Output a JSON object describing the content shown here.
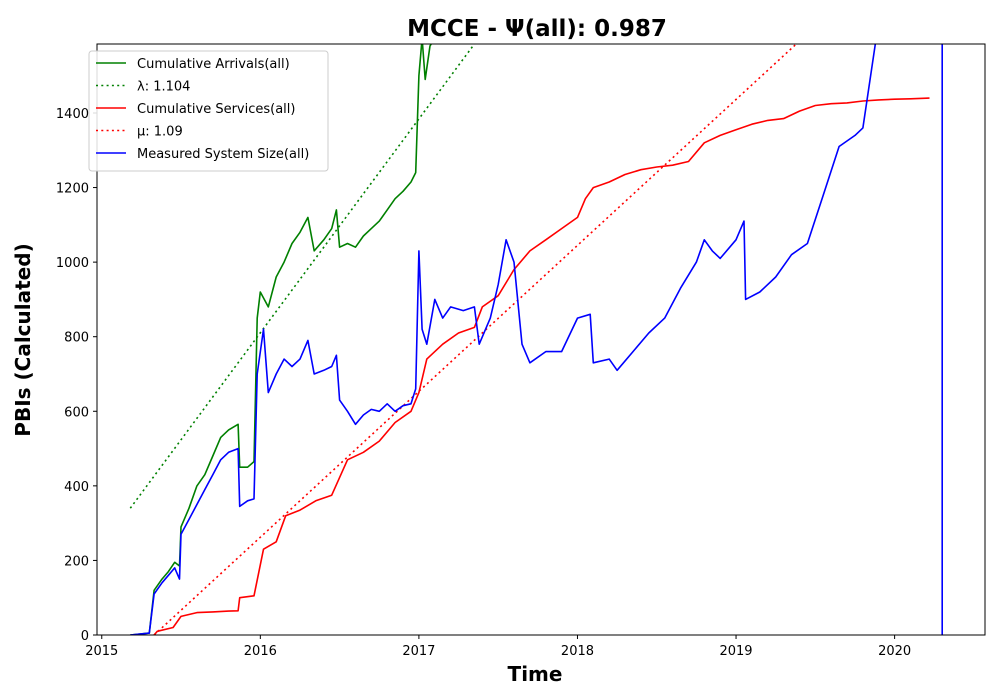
{
  "chart_data": {
    "type": "line",
    "title": "MCCE -  Ψ(all): 0.987",
    "xlabel": "Time",
    "ylabel": "PBIs (Calculated)",
    "xlim": [
      2014.97,
      2020.57
    ],
    "ylim": [
      0,
      1585
    ],
    "x_ticks": [
      2015,
      2016,
      2017,
      2018,
      2019,
      2020
    ],
    "x_tick_labels": [
      "2015",
      "2016",
      "2017",
      "2018",
      "2019",
      "2020"
    ],
    "y_ticks": [
      0,
      200,
      400,
      600,
      800,
      1000,
      1200,
      1400
    ],
    "y_tick_labels": [
      "0",
      "200",
      "400",
      "600",
      "800",
      "1000",
      "1200",
      "1400"
    ],
    "grid": false,
    "legend_position": "upper-left",
    "legend": [
      {
        "label": "Cumulative Arrivals(all)",
        "color": "#008000",
        "style": "solid"
      },
      {
        "label": "λ: 1.104",
        "color": "#008000",
        "style": "dotted"
      },
      {
        "label": "Cumulative Services(all)",
        "color": "#ff0000",
        "style": "solid"
      },
      {
        "label": "μ: 1.09",
        "color": "#ff0000",
        "style": "dotted"
      },
      {
        "label": "Measured System Size(all)",
        "color": "#0000ff",
        "style": "solid"
      }
    ],
    "series": [
      {
        "name": "Cumulative Arrivals(all)",
        "color": "#008000",
        "style": "solid",
        "points": [
          [
            2015.18,
            0
          ],
          [
            2015.3,
            5
          ],
          [
            2015.33,
            120
          ],
          [
            2015.38,
            150
          ],
          [
            2015.42,
            170
          ],
          [
            2015.46,
            195
          ],
          [
            2015.49,
            185
          ],
          [
            2015.5,
            290
          ],
          [
            2015.55,
            340
          ],
          [
            2015.6,
            400
          ],
          [
            2015.65,
            430
          ],
          [
            2015.7,
            480
          ],
          [
            2015.75,
            530
          ],
          [
            2015.8,
            550
          ],
          [
            2015.86,
            565
          ],
          [
            2015.87,
            450
          ],
          [
            2015.92,
            450
          ],
          [
            2015.96,
            465
          ],
          [
            2015.98,
            850
          ],
          [
            2016.0,
            920
          ],
          [
            2016.05,
            880
          ],
          [
            2016.1,
            960
          ],
          [
            2016.15,
            1000
          ],
          [
            2016.2,
            1050
          ],
          [
            2016.25,
            1080
          ],
          [
            2016.3,
            1120
          ],
          [
            2016.34,
            1030
          ],
          [
            2016.4,
            1060
          ],
          [
            2016.45,
            1090
          ],
          [
            2016.48,
            1140
          ],
          [
            2016.5,
            1040
          ],
          [
            2016.55,
            1050
          ],
          [
            2016.6,
            1040
          ],
          [
            2016.65,
            1070
          ],
          [
            2016.7,
            1090
          ],
          [
            2016.75,
            1110
          ],
          [
            2016.8,
            1140
          ],
          [
            2016.85,
            1170
          ],
          [
            2016.9,
            1190
          ],
          [
            2016.95,
            1215
          ],
          [
            2016.98,
            1240
          ],
          [
            2017.0,
            1500
          ],
          [
            2017.02,
            1600
          ],
          [
            2017.04,
            1490
          ],
          [
            2017.07,
            1580
          ],
          [
            2017.1,
            1600
          ]
        ]
      },
      {
        "name": "λ: 1.104",
        "color": "#008000",
        "style": "dotted",
        "points": [
          [
            2015.18,
            340
          ],
          [
            2017.35,
            1585
          ]
        ]
      },
      {
        "name": "Cumulative Services(all)",
        "color": "#ff0000",
        "style": "solid",
        "points": [
          [
            2015.33,
            0
          ],
          [
            2015.35,
            10
          ],
          [
            2015.45,
            20
          ],
          [
            2015.5,
            50
          ],
          [
            2015.6,
            60
          ],
          [
            2015.7,
            62
          ],
          [
            2015.8,
            64
          ],
          [
            2015.86,
            65
          ],
          [
            2015.87,
            100
          ],
          [
            2015.96,
            105
          ],
          [
            2016.02,
            230
          ],
          [
            2016.1,
            250
          ],
          [
            2016.16,
            320
          ],
          [
            2016.25,
            335
          ],
          [
            2016.35,
            360
          ],
          [
            2016.45,
            375
          ],
          [
            2016.55,
            470
          ],
          [
            2016.65,
            490
          ],
          [
            2016.75,
            520
          ],
          [
            2016.85,
            570
          ],
          [
            2016.95,
            600
          ],
          [
            2017.0,
            650
          ],
          [
            2017.05,
            740
          ],
          [
            2017.15,
            780
          ],
          [
            2017.25,
            810
          ],
          [
            2017.35,
            825
          ],
          [
            2017.4,
            880
          ],
          [
            2017.5,
            910
          ],
          [
            2017.6,
            980
          ],
          [
            2017.7,
            1030
          ],
          [
            2017.8,
            1060
          ],
          [
            2017.9,
            1090
          ],
          [
            2018.0,
            1120
          ],
          [
            2018.05,
            1170
          ],
          [
            2018.1,
            1200
          ],
          [
            2018.2,
            1215
          ],
          [
            2018.3,
            1235
          ],
          [
            2018.4,
            1248
          ],
          [
            2018.5,
            1255
          ],
          [
            2018.6,
            1260
          ],
          [
            2018.7,
            1270
          ],
          [
            2018.8,
            1320
          ],
          [
            2018.9,
            1340
          ],
          [
            2019.0,
            1355
          ],
          [
            2019.1,
            1370
          ],
          [
            2019.2,
            1380
          ],
          [
            2019.3,
            1385
          ],
          [
            2019.4,
            1405
          ],
          [
            2019.5,
            1420
          ],
          [
            2019.6,
            1425
          ],
          [
            2019.7,
            1427
          ],
          [
            2019.8,
            1432
          ],
          [
            2019.9,
            1435
          ],
          [
            2020.0,
            1437
          ],
          [
            2020.1,
            1438
          ],
          [
            2020.22,
            1440
          ]
        ]
      },
      {
        "name": "μ: 1.09",
        "color": "#ff0000",
        "style": "dotted",
        "points": [
          [
            2015.33,
            0
          ],
          [
            2019.38,
            1585
          ]
        ]
      },
      {
        "name": "Measured System Size(all)",
        "color": "#0000ff",
        "style": "solid",
        "points": [
          [
            2015.18,
            0
          ],
          [
            2015.3,
            5
          ],
          [
            2015.33,
            110
          ],
          [
            2015.38,
            140
          ],
          [
            2015.42,
            160
          ],
          [
            2015.46,
            180
          ],
          [
            2015.49,
            150
          ],
          [
            2015.5,
            270
          ],
          [
            2015.55,
            310
          ],
          [
            2015.6,
            350
          ],
          [
            2015.65,
            390
          ],
          [
            2015.7,
            430
          ],
          [
            2015.75,
            470
          ],
          [
            2015.8,
            490
          ],
          [
            2015.86,
            500
          ],
          [
            2015.87,
            345
          ],
          [
            2015.92,
            360
          ],
          [
            2015.96,
            365
          ],
          [
            2015.98,
            700
          ],
          [
            2016.02,
            820
          ],
          [
            2016.05,
            650
          ],
          [
            2016.1,
            700
          ],
          [
            2016.15,
            740
          ],
          [
            2016.2,
            720
          ],
          [
            2016.25,
            740
          ],
          [
            2016.3,
            790
          ],
          [
            2016.34,
            700
          ],
          [
            2016.4,
            710
          ],
          [
            2016.45,
            720
          ],
          [
            2016.48,
            750
          ],
          [
            2016.5,
            630
          ],
          [
            2016.55,
            600
          ],
          [
            2016.6,
            565
          ],
          [
            2016.65,
            590
          ],
          [
            2016.7,
            605
          ],
          [
            2016.75,
            600
          ],
          [
            2016.8,
            620
          ],
          [
            2016.85,
            600
          ],
          [
            2016.9,
            615
          ],
          [
            2016.95,
            620
          ],
          [
            2016.98,
            660
          ],
          [
            2017.0,
            1030
          ],
          [
            2017.02,
            820
          ],
          [
            2017.05,
            780
          ],
          [
            2017.1,
            900
          ],
          [
            2017.15,
            850
          ],
          [
            2017.2,
            880
          ],
          [
            2017.28,
            870
          ],
          [
            2017.35,
            880
          ],
          [
            2017.38,
            780
          ],
          [
            2017.45,
            850
          ],
          [
            2017.5,
            940
          ],
          [
            2017.55,
            1060
          ],
          [
            2017.6,
            1000
          ],
          [
            2017.65,
            780
          ],
          [
            2017.7,
            730
          ],
          [
            2017.8,
            760
          ],
          [
            2017.9,
            760
          ],
          [
            2018.0,
            850
          ],
          [
            2018.08,
            860
          ],
          [
            2018.1,
            730
          ],
          [
            2018.2,
            740
          ],
          [
            2018.25,
            710
          ],
          [
            2018.35,
            760
          ],
          [
            2018.45,
            810
          ],
          [
            2018.55,
            850
          ],
          [
            2018.65,
            930
          ],
          [
            2018.75,
            1000
          ],
          [
            2018.8,
            1060
          ],
          [
            2018.85,
            1030
          ],
          [
            2018.9,
            1010
          ],
          [
            2019.0,
            1060
          ],
          [
            2019.05,
            1110
          ],
          [
            2019.06,
            900
          ],
          [
            2019.15,
            920
          ],
          [
            2019.25,
            960
          ],
          [
            2019.35,
            1020
          ],
          [
            2019.45,
            1050
          ],
          [
            2019.55,
            1180
          ],
          [
            2019.65,
            1310
          ],
          [
            2019.75,
            1340
          ],
          [
            2019.8,
            1360
          ],
          [
            2019.88,
            1590
          ]
        ]
      },
      {
        "name": "Measured System Size(all) vertical",
        "color": "#0000ff",
        "style": "solid",
        "points": [
          [
            2020.3,
            0
          ],
          [
            2020.3,
            1585
          ]
        ]
      }
    ]
  }
}
